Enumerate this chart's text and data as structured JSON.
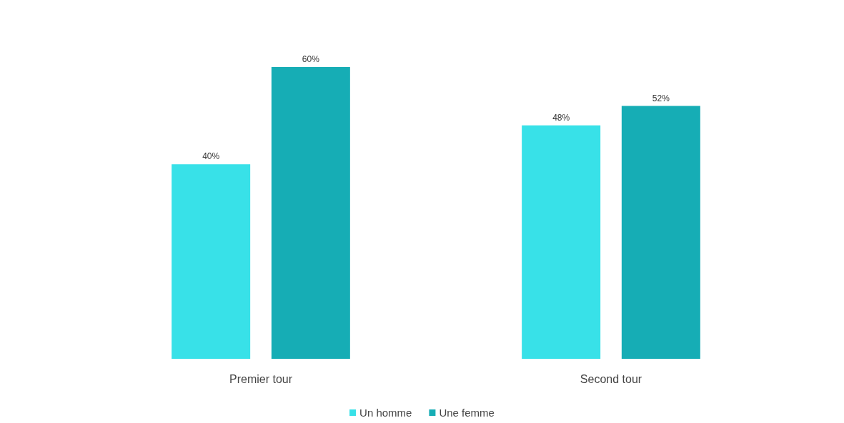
{
  "chart_data": {
    "type": "bar",
    "categories": [
      "Premier tour",
      "Second tour"
    ],
    "series": [
      {
        "name": "Un homme",
        "color": "#38e1e8",
        "values": [
          40,
          48
        ],
        "value_labels": [
          "40%",
          "48%"
        ]
      },
      {
        "name": "Une femme",
        "color": "#16adb5",
        "values": [
          60,
          52
        ],
        "value_labels": [
          "60%",
          "52%"
        ]
      }
    ],
    "tick_labels": "x",
    "legend": "bottom"
  }
}
